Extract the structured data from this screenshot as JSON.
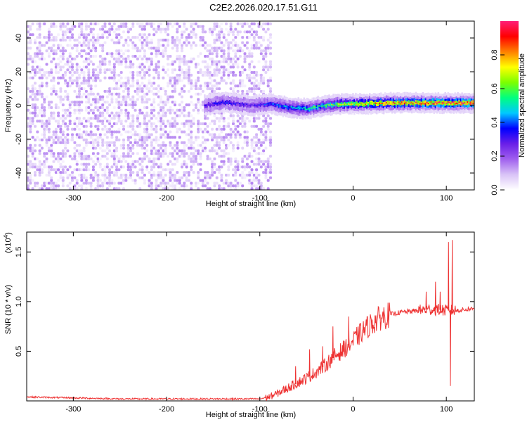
{
  "title": "C2E2.2026.020.17.51.G11",
  "chart_data": [
    {
      "type": "heatmap",
      "xlabel": "Height of straight line (km)",
      "ylabel": "Frequency (Hz)",
      "xlim": [
        -350,
        130
      ],
      "ylim": [
        -50,
        50
      ],
      "xticks": [
        -300,
        -200,
        -100,
        0,
        100
      ],
      "yticks": [
        -40,
        -20,
        0,
        20,
        40
      ],
      "colorbar": {
        "label": "Normalized spectral amplitude",
        "range": [
          0,
          1
        ],
        "ticks": [
          0.0,
          0.2,
          0.4,
          0.6,
          0.8
        ],
        "tick_labels": [
          "0.0",
          "0.2",
          "0.4",
          "0.6",
          "0.8"
        ],
        "colormap": [
          "#ffffff",
          "#d9c3f7",
          "#a060ee",
          "#6a1fe8",
          "#0000ff",
          "#00c8ff",
          "#00ff80",
          "#7cff00",
          "#ffff00",
          "#ff8000",
          "#ff0000",
          "#ff1e78"
        ]
      },
      "noise_region": {
        "x": [
          -350,
          -90
        ],
        "freq_range": [
          -50,
          50
        ],
        "amplitude": [
          0.02,
          0.15
        ]
      },
      "carrier": [
        {
          "x": -160,
          "freq": 0,
          "amp": 0.3
        },
        {
          "x": -140,
          "freq": 2,
          "amp": 0.35
        },
        {
          "x": -110,
          "freq": 0,
          "amp": 0.3
        },
        {
          "x": -90,
          "freq": 1,
          "amp": 0.4
        },
        {
          "x": -70,
          "freq": -1,
          "amp": 0.45
        },
        {
          "x": -50,
          "freq": -2,
          "amp": 0.5
        },
        {
          "x": -30,
          "freq": 0,
          "amp": 0.6
        },
        {
          "x": -10,
          "freq": 1,
          "amp": 0.7
        },
        {
          "x": 10,
          "freq": 1,
          "amp": 0.75
        },
        {
          "x": 40,
          "freq": 1.5,
          "amp": 0.85
        },
        {
          "x": 70,
          "freq": 1.5,
          "amp": 0.9
        },
        {
          "x": 100,
          "freq": 1.5,
          "amp": 0.92
        },
        {
          "x": 130,
          "freq": 1.5,
          "amp": 0.95
        }
      ]
    },
    {
      "type": "line",
      "xlabel": "Height of straight line (km)",
      "ylabel": "SNR (10 * v/v)",
      "y_multiplier": "(x10^4)",
      "xlim": [
        -350,
        130
      ],
      "ylim": [
        0,
        1.7
      ],
      "xticks": [
        -300,
        -200,
        -100,
        0,
        100
      ],
      "yticks": [
        0.5,
        1.0,
        1.5
      ],
      "ytick_labels": [
        "0.5",
        "1.0",
        "1.5"
      ],
      "color": "#ee3333",
      "series": [
        {
          "x": [
            -350,
            -300,
            -250,
            -200,
            -150,
            -100,
            -90,
            -80,
            -70,
            -60,
            -50,
            -40,
            -30,
            -20,
            -10,
            0,
            10,
            20,
            30,
            40,
            50,
            60,
            70,
            80,
            90,
            100,
            110,
            120,
            130
          ],
          "values": [
            0.04,
            0.03,
            0.02,
            0.02,
            0.02,
            0.02,
            0.04,
            0.08,
            0.13,
            0.18,
            0.23,
            0.29,
            0.36,
            0.45,
            0.52,
            0.6,
            0.7,
            0.78,
            0.84,
            0.87,
            0.89,
            0.9,
            0.91,
            0.92,
            0.92,
            0.91,
            0.91,
            0.92,
            0.93
          ]
        }
      ],
      "spikes": [
        {
          "x": -62,
          "y": 0.35
        },
        {
          "x": -47,
          "y": 0.52
        },
        {
          "x": -33,
          "y": 0.55
        },
        {
          "x": -22,
          "y": 0.75
        },
        {
          "x": -5,
          "y": 0.85
        },
        {
          "x": 78,
          "y": 1.1
        },
        {
          "x": 88,
          "y": 1.2
        },
        {
          "x": 93,
          "y": 1.1
        },
        {
          "x": 102,
          "y": 1.6
        },
        {
          "x": 104,
          "y": 0.15
        },
        {
          "x": 106,
          "y": 1.62
        }
      ]
    }
  ]
}
